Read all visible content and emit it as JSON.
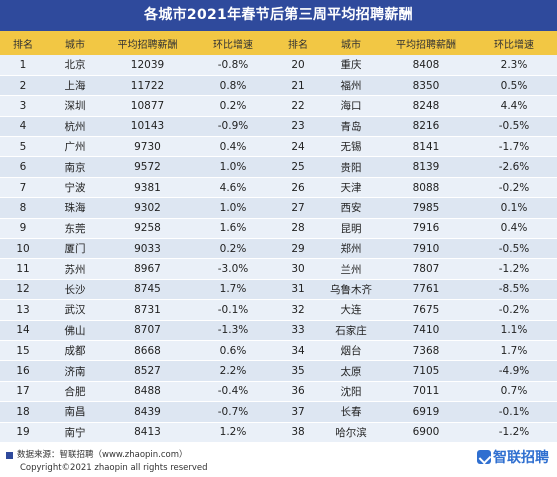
{
  "title": "各城市2021年春节后第三周平均招聘薪酬",
  "header": {
    "rank": "排名",
    "city": "城市",
    "salary": "平均招聘薪酬",
    "ratio": "环比增速"
  },
  "chart_data": {
    "type": "table",
    "title": "各城市2021年春节后第三周平均招聘薪酬",
    "columns": [
      "排名",
      "城市",
      "平均招聘薪酬",
      "环比增速",
      "排名",
      "城市",
      "平均招聘薪酬",
      "环比增速"
    ],
    "left": [
      [
        "1",
        "北京",
        "12039",
        "-0.8%"
      ],
      [
        "2",
        "上海",
        "11722",
        "0.8%"
      ],
      [
        "3",
        "深圳",
        "10877",
        "0.2%"
      ],
      [
        "4",
        "杭州",
        "10143",
        "-0.9%"
      ],
      [
        "5",
        "广州",
        "9730",
        "0.4%"
      ],
      [
        "6",
        "南京",
        "9572",
        "1.0%"
      ],
      [
        "7",
        "宁波",
        "9381",
        "4.6%"
      ],
      [
        "8",
        "珠海",
        "9302",
        "1.0%"
      ],
      [
        "9",
        "东莞",
        "9258",
        "1.6%"
      ],
      [
        "10",
        "厦门",
        "9033",
        "0.2%"
      ],
      [
        "11",
        "苏州",
        "8967",
        "-3.0%"
      ],
      [
        "12",
        "长沙",
        "8745",
        "1.7%"
      ],
      [
        "13",
        "武汉",
        "8731",
        "-0.1%"
      ],
      [
        "14",
        "佛山",
        "8707",
        "-1.3%"
      ],
      [
        "15",
        "成都",
        "8668",
        "0.6%"
      ],
      [
        "16",
        "济南",
        "8527",
        "2.2%"
      ],
      [
        "17",
        "合肥",
        "8488",
        "-0.4%"
      ],
      [
        "18",
        "南昌",
        "8439",
        "-0.7%"
      ],
      [
        "19",
        "南宁",
        "8413",
        "1.2%"
      ]
    ],
    "right": [
      [
        "20",
        "重庆",
        "8408",
        "2.3%"
      ],
      [
        "21",
        "福州",
        "8350",
        "0.5%"
      ],
      [
        "22",
        "海口",
        "8248",
        "4.4%"
      ],
      [
        "23",
        "青岛",
        "8216",
        "-0.5%"
      ],
      [
        "24",
        "无锡",
        "8141",
        "-1.7%"
      ],
      [
        "25",
        "贵阳",
        "8139",
        "-2.6%"
      ],
      [
        "26",
        "天津",
        "8088",
        "-0.2%"
      ],
      [
        "27",
        "西安",
        "7985",
        "0.1%"
      ],
      [
        "28",
        "昆明",
        "7916",
        "0.4%"
      ],
      [
        "29",
        "郑州",
        "7910",
        "-0.5%"
      ],
      [
        "30",
        "兰州",
        "7807",
        "-1.2%"
      ],
      [
        "31",
        "乌鲁木齐",
        "7761",
        "-8.5%"
      ],
      [
        "32",
        "大连",
        "7675",
        "-0.2%"
      ],
      [
        "33",
        "石家庄",
        "7410",
        "1.1%"
      ],
      [
        "34",
        "烟台",
        "7368",
        "1.7%"
      ],
      [
        "35",
        "太原",
        "7105",
        "-4.9%"
      ],
      [
        "36",
        "沈阳",
        "7011",
        "0.7%"
      ],
      [
        "37",
        "长春",
        "6919",
        "-0.1%"
      ],
      [
        "38",
        "哈尔滨",
        "6900",
        "-1.2%"
      ]
    ]
  },
  "footer": {
    "source": "数据来源：智联招聘（www.zhaopin.com）",
    "copyright": "Copyright©2021 zhaopin all rights reserved",
    "logo_text": "智联招聘"
  },
  "colors": {
    "title_bg": "#2f4a9c",
    "header_bg": "#f2c744",
    "row_odd": "#eaf0f8",
    "row_even": "#dde6f2",
    "logo": "#2f6fd0"
  }
}
